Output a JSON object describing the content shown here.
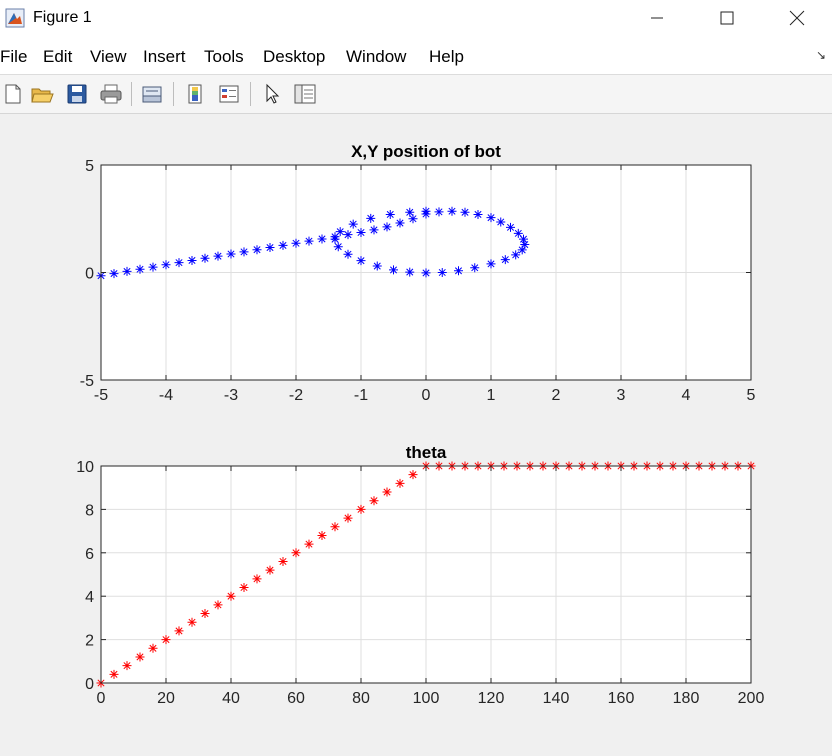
{
  "window": {
    "title": "Figure 1",
    "icon": "matlab-figure-icon",
    "controls": [
      "minimize-icon",
      "maximize-icon",
      "close-icon"
    ]
  },
  "menubar": {
    "items": [
      "File",
      "Edit",
      "View",
      "Insert",
      "Tools",
      "Desktop",
      "Window",
      "Help"
    ],
    "overflow_icon": "dock-arrow-icon"
  },
  "toolbar": {
    "buttons": [
      "new-figure-icon",
      "open-file-icon",
      "save-icon",
      "print-icon",
      "link-plot-icon",
      "insert-colorbar-icon",
      "insert-legend-icon",
      "edit-plot-icon",
      "property-inspector-icon"
    ]
  },
  "colors": {
    "series1": "#0000ff",
    "series2": "#ff0000",
    "axes_bg": "#ffffff",
    "figure_bg": "#f0f0f0",
    "grid": "#dfdfdf"
  },
  "chart_data": [
    {
      "type": "scatter",
      "title": "X,Y position of bot",
      "xlabel": "",
      "ylabel": "",
      "xlim": [
        -5,
        5
      ],
      "ylim": [
        -5,
        5
      ],
      "xticks": [
        -5,
        -4,
        -3,
        -2,
        -1,
        0,
        1,
        2,
        3,
        4,
        5
      ],
      "yticks": [
        -5,
        0,
        5
      ],
      "grid": true,
      "marker": "*",
      "series": [
        {
          "color": "#0000ff",
          "x": [
            -5.0,
            -4.8,
            -4.6,
            -4.4,
            -4.2,
            -4.0,
            -3.8,
            -3.6,
            -3.4,
            -3.2,
            -3.0,
            -2.8,
            -2.6,
            -2.4,
            -2.2,
            -2.0,
            -1.8,
            -1.6,
            -1.4,
            -1.2,
            -1.0,
            -0.8,
            -0.6,
            -0.4,
            -0.2,
            0.0,
            0.2,
            0.4,
            0.6,
            0.8,
            1.0,
            1.15,
            1.3,
            1.42,
            1.5,
            1.52,
            1.48,
            1.38,
            1.22,
            1.0,
            0.75,
            0.5,
            0.25,
            0.0,
            -0.25,
            -0.5,
            -0.75,
            -1.0,
            -1.2,
            -1.35,
            -1.4,
            -1.32,
            -1.12,
            -0.85,
            -0.55,
            -0.25,
            0.0
          ],
          "y": [
            -0.15,
            -0.05,
            0.05,
            0.15,
            0.25,
            0.36,
            0.46,
            0.56,
            0.66,
            0.76,
            0.86,
            0.96,
            1.06,
            1.16,
            1.26,
            1.36,
            1.46,
            1.56,
            1.66,
            1.76,
            1.86,
            1.98,
            2.12,
            2.3,
            2.5,
            2.72,
            2.82,
            2.85,
            2.8,
            2.7,
            2.55,
            2.35,
            2.1,
            1.82,
            1.55,
            1.3,
            1.05,
            0.82,
            0.6,
            0.4,
            0.22,
            0.08,
            0.0,
            -0.02,
            0.02,
            0.12,
            0.3,
            0.55,
            0.85,
            1.2,
            1.55,
            1.9,
            2.25,
            2.52,
            2.7,
            2.8,
            2.85
          ]
        }
      ]
    },
    {
      "type": "scatter",
      "title": "theta",
      "xlabel": "",
      "ylabel": "",
      "xlim": [
        0,
        200
      ],
      "ylim": [
        0,
        10
      ],
      "xticks": [
        0,
        20,
        40,
        60,
        80,
        100,
        120,
        140,
        160,
        180,
        200
      ],
      "yticks": [
        0,
        2,
        4,
        6,
        8,
        10
      ],
      "grid": true,
      "marker": "*",
      "series": [
        {
          "color": "#ff0000",
          "x": [
            0,
            4,
            8,
            12,
            16,
            20,
            24,
            28,
            32,
            36,
            40,
            44,
            48,
            52,
            56,
            60,
            64,
            68,
            72,
            76,
            80,
            84,
            88,
            92,
            96,
            100,
            104,
            108,
            112,
            116,
            120,
            124,
            128,
            132,
            136,
            140,
            144,
            148,
            152,
            156,
            160,
            164,
            168,
            172,
            176,
            180,
            184,
            188,
            192,
            196,
            200
          ],
          "y": [
            0,
            0.4,
            0.8,
            1.2,
            1.6,
            2.0,
            2.4,
            2.8,
            3.2,
            3.6,
            4.0,
            4.4,
            4.8,
            5.2,
            5.6,
            6.0,
            6.4,
            6.8,
            7.2,
            7.6,
            8.0,
            8.4,
            8.8,
            9.2,
            9.6,
            10,
            10,
            10,
            10,
            10,
            10,
            10,
            10,
            10,
            10,
            10,
            10,
            10,
            10,
            10,
            10,
            10,
            10,
            10,
            10,
            10,
            10,
            10,
            10,
            10,
            10
          ]
        }
      ]
    }
  ]
}
